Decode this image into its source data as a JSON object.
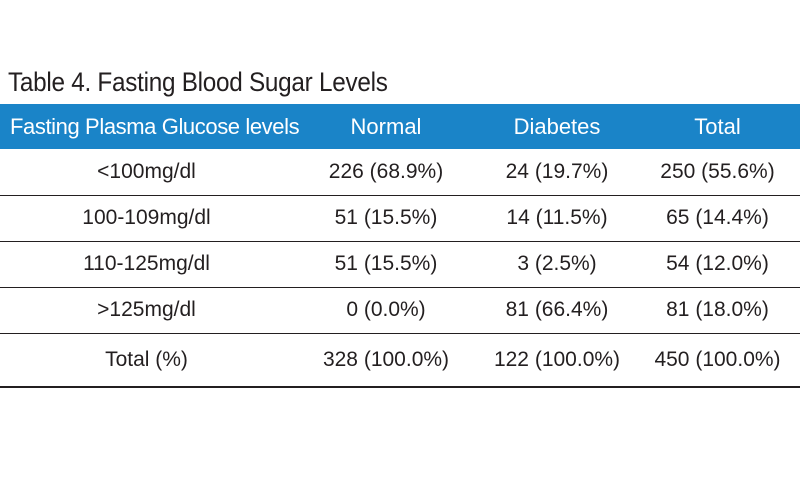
{
  "caption": "Table 4.  Fasting Blood Sugar Levels",
  "table": {
    "headers": [
      "Fasting Plasma Glucose levels",
      "Normal",
      "Diabetes",
      "Total"
    ],
    "rows": [
      [
        "<100mg/dl",
        "226 (68.9%)",
        "24 (19.7%)",
        "250 (55.6%)"
      ],
      [
        "100-109mg/dl",
        "51 (15.5%)",
        "14 (11.5%)",
        "65 (14.4%)"
      ],
      [
        "110-125mg/dl",
        "51 (15.5%)",
        "3 (2.5%)",
        "54 (12.0%)"
      ],
      [
        ">125mg/dl",
        "0 (0.0%)",
        "81 (66.4%)",
        "81 (18.0%)"
      ],
      [
        "Total (%)",
        "328 (100.0%)",
        "122 (100.0%)",
        "450 (100.0%)"
      ]
    ]
  },
  "colors": {
    "header_background": "#1a84c8",
    "header_text": "#ffffff",
    "body_text": "#231f20",
    "rule": "#231f20"
  }
}
